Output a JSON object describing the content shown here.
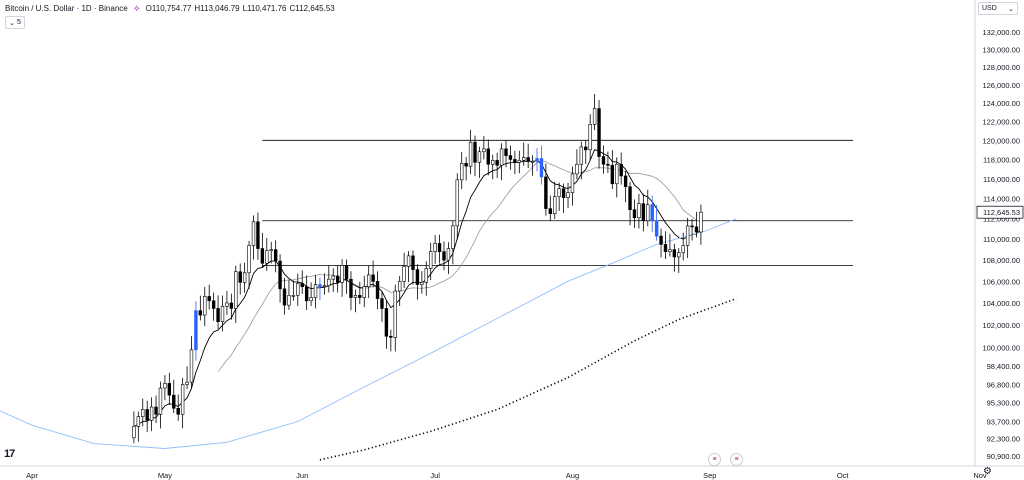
{
  "legend": {
    "symbol": "Bitcoin / U.S. Dollar · 1D · Binance",
    "open_label": "O",
    "open": "110,754.77",
    "high_label": "H",
    "high": "113,046.79",
    "low_label": "L",
    "low": "110,471.76",
    "close_label": "C",
    "close": "112,645.53",
    "collapse_count": "5"
  },
  "currency": "USD",
  "colors": {
    "up": "#ffffff",
    "down": "#000000",
    "outline": "#000000",
    "special_candle": "#2962ff",
    "ma_fast": "#000000",
    "ma_mid": "#9598a1",
    "ma_slow": "#90bff9",
    "ma_long": "#000000",
    "level_line": "#000000",
    "grid": "#f0f3fa",
    "axis_text": "#131722"
  },
  "chart_data": {
    "type": "candlestick",
    "title": "Bitcoin / U.S. Dollar · 1D · Binance",
    "y_axis": {
      "scale": "log",
      "ticks": [
        "132,000.00",
        "130,000.00",
        "128,000.00",
        "126,000.00",
        "124,000.00",
        "122,000.00",
        "120,000.00",
        "118,000.00",
        "116,000.00",
        "114,000.00",
        "112,000.00",
        "110,000.00",
        "108,000.00",
        "106,000.00",
        "104,000.00",
        "102,000.00",
        "100,000.00",
        "98,400.00",
        "96,800.00",
        "95,300.00",
        "93,700.00",
        "92,300.00",
        "90,900.00"
      ],
      "last_price_label": "112,645.53"
    },
    "x_axis": {
      "ticks": [
        "Apr",
        "May",
        "Jun",
        "Jul",
        "Aug",
        "Sep",
        "Oct",
        "Nov"
      ],
      "tick_dates": [
        "2025-04-01",
        "2025-05-01",
        "2025-06-01",
        "2025-07-01",
        "2025-08-01",
        "2025-09-01",
        "2025-10-01",
        "2025-11-01"
      ]
    },
    "start_date": "2025-04-24",
    "closes": [
      93300,
      94100,
      94700,
      93800,
      94900,
      94300,
      96500,
      96900,
      95900,
      94800,
      94300,
      96800,
      97000,
      99800,
      103300,
      102900,
      104600,
      104200,
      103500,
      102300,
      103700,
      104000,
      103500,
      106900,
      105900,
      106800,
      109400,
      111700,
      109100,
      107700,
      108900,
      109000,
      107900,
      105300,
      103800,
      104700,
      104700,
      105800,
      105500,
      104200,
      104500,
      105700,
      105500,
      105600,
      106200,
      106500,
      105900,
      107500,
      106200,
      104500,
      104700,
      104500,
      105500,
      106600,
      106000,
      104400,
      103500,
      101000,
      100900,
      105100,
      106000,
      107400,
      108400,
      107100,
      105700,
      105900,
      107200,
      108800,
      109600,
      108800,
      108000,
      109100,
      111300,
      115900,
      117600,
      117300,
      119800,
      117700,
      118800,
      119100,
      117500,
      117900,
      117400,
      119100,
      118400,
      118000,
      117700,
      117900,
      118200,
      117800,
      117800,
      118100,
      116200,
      113000,
      112500,
      114200,
      115000,
      114100,
      114600,
      116500,
      117500,
      119300,
      119000,
      121700,
      123400,
      118300,
      117500,
      117400,
      115500,
      117500,
      116300,
      115200,
      112900,
      112100,
      113500,
      111800,
      113400,
      111800,
      110300,
      109500,
      108800,
      109000,
      108300,
      108700,
      109400,
      111300,
      111200,
      110700,
      112645
    ],
    "ranges": [
      {
        "date": "2025-05-09",
        "value": 102800,
        "series": "blue candle"
      },
      {
        "date": "2025-05-10",
        "value": 103600,
        "series": "blue candle"
      },
      {
        "date": "2025-05-30",
        "value": 103800,
        "series": "blue candle"
      }
    ],
    "levels": [
      120000,
      111800,
      107500
    ],
    "level_start_date": "2025-05-23",
    "level_end_date": "2025-10-01",
    "special_candles": [
      "2025-05-08",
      "2025-06-05",
      "2025-07-24",
      "2025-07-25",
      "2025-08-19",
      "2025-08-20"
    ],
    "series": [
      {
        "name": "",
        "kind": "ma_fast",
        "style": "solid"
      },
      {
        "name": "",
        "kind": "ma_mid",
        "style": "solid"
      },
      {
        "name": "",
        "kind": "ma_slow",
        "style": "solid"
      },
      {
        "name": "",
        "kind": "ma_long",
        "style": "dotted"
      }
    ],
    "ma_slow_points": [
      [
        "2025-03-15",
        96200
      ],
      [
        "2025-04-01",
        93400
      ],
      [
        "2025-04-15",
        91900
      ],
      [
        "2025-05-01",
        91500
      ],
      [
        "2025-05-15",
        92000
      ],
      [
        "2025-05-31",
        93700
      ],
      [
        "2025-06-15",
        96600
      ],
      [
        "2025-06-30",
        99500
      ],
      [
        "2025-07-15",
        102600
      ],
      [
        "2025-07-31",
        106000
      ],
      [
        "2025-08-10",
        107700
      ],
      [
        "2025-08-20",
        109500
      ],
      [
        "2025-08-31",
        110800
      ],
      [
        "2025-09-07",
        112000
      ]
    ],
    "ma_long_points": [
      [
        "2025-06-05",
        90600
      ],
      [
        "2025-06-15",
        91400
      ],
      [
        "2025-06-30",
        92900
      ],
      [
        "2025-07-15",
        94700
      ],
      [
        "2025-07-31",
        97400
      ],
      [
        "2025-08-15",
        100600
      ],
      [
        "2025-08-25",
        102500
      ],
      [
        "2025-09-07",
        104400
      ]
    ],
    "grid": false
  }
}
